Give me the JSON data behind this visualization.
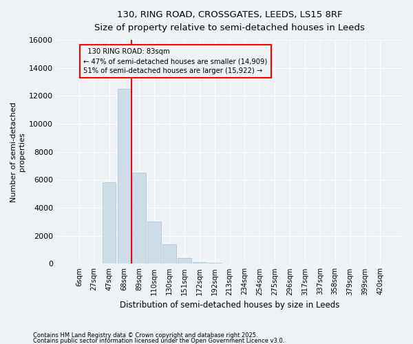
{
  "title1": "130, RING ROAD, CROSSGATES, LEEDS, LS15 8RF",
  "title2": "Size of property relative to semi-detached houses in Leeds",
  "xlabel": "Distribution of semi-detached houses by size in Leeds",
  "ylabel": "Number of semi-detached\nproperties",
  "categories": [
    "6sqm",
    "27sqm",
    "47sqm",
    "68sqm",
    "89sqm",
    "110sqm",
    "130sqm",
    "151sqm",
    "172sqm",
    "192sqm",
    "213sqm",
    "234sqm",
    "254sqm",
    "275sqm",
    "296sqm",
    "317sqm",
    "337sqm",
    "358sqm",
    "379sqm",
    "399sqm",
    "420sqm"
  ],
  "values": [
    0,
    0,
    5800,
    12500,
    6500,
    3000,
    1400,
    400,
    100,
    50,
    0,
    0,
    0,
    0,
    0,
    0,
    0,
    0,
    0,
    0,
    0
  ],
  "bar_color": "#ccdde8",
  "bar_edge_color": "#aabfcf",
  "property_line_x": 3.5,
  "property_label": "130 RING ROAD: 83sqm",
  "smaller_pct": "47% of semi-detached houses are smaller (14,909)",
  "larger_pct": "51% of semi-detached houses are larger (15,922)",
  "ylim": [
    0,
    16000
  ],
  "yticks": [
    0,
    2000,
    4000,
    6000,
    8000,
    10000,
    12000,
    14000,
    16000
  ],
  "footnote1": "Contains HM Land Registry data © Crown copyright and database right 2025.",
  "footnote2": "Contains public sector information licensed under the Open Government Licence v3.0.",
  "background_color": "#edf2f7"
}
